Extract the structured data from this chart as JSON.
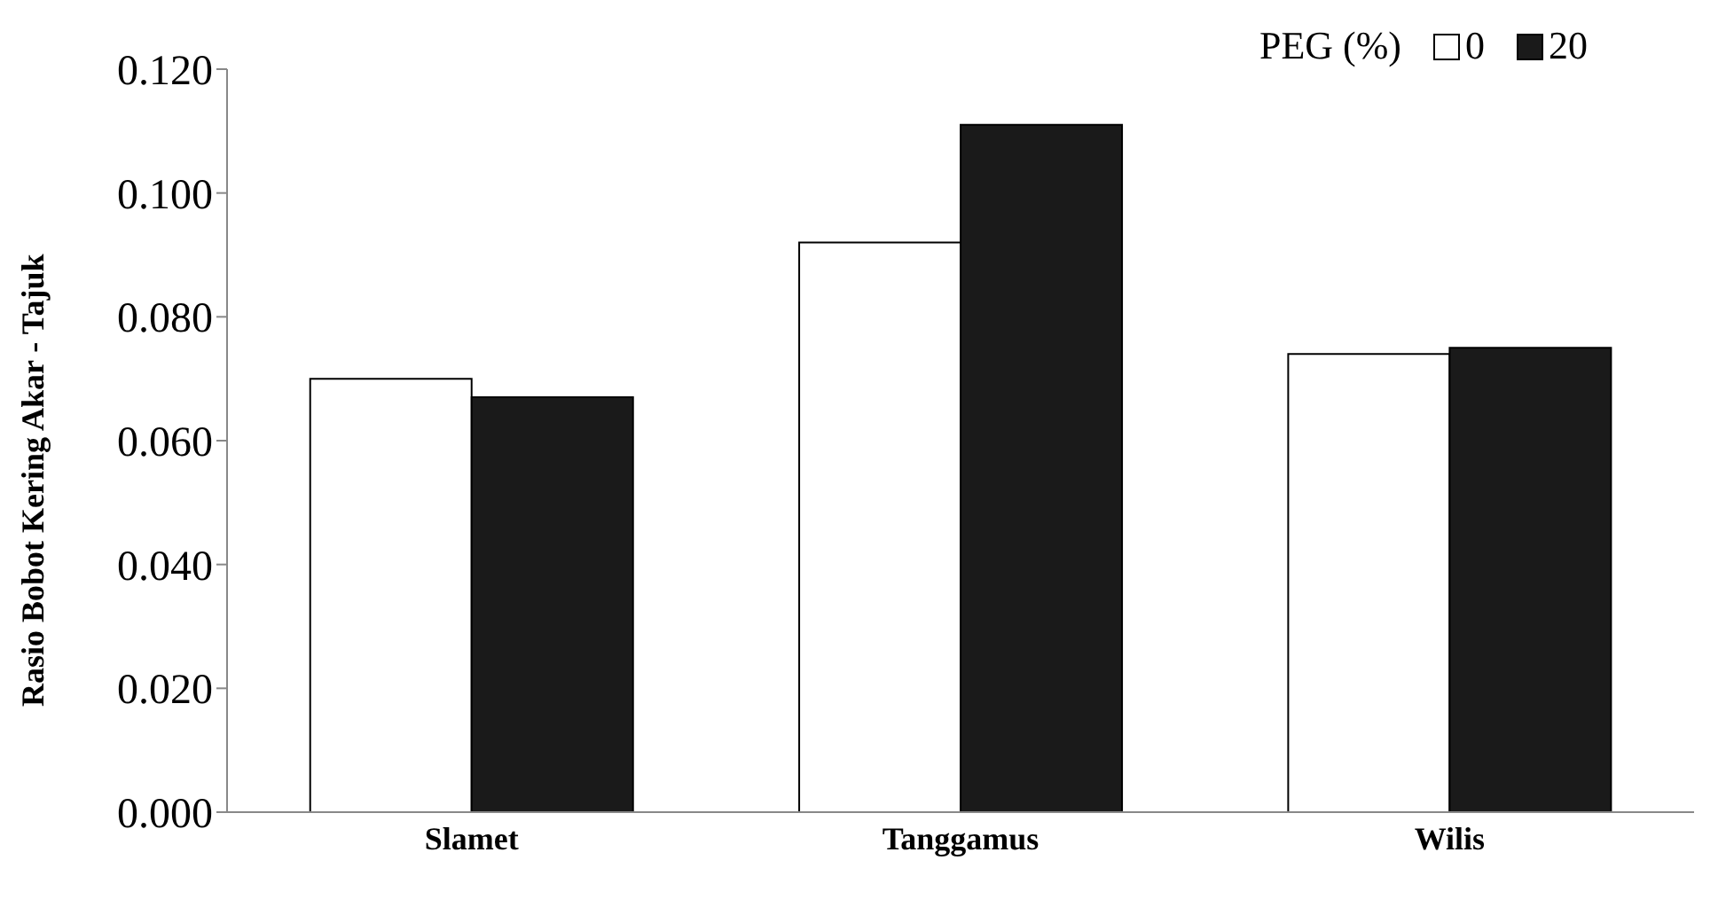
{
  "chart_data": {
    "type": "bar",
    "ylabel": "Rasio Bobot Kering Akar - Tajuk",
    "legend_title": "PEG (%)",
    "categories": [
      "Slamet",
      "Tanggamus",
      "Wilis"
    ],
    "series": [
      {
        "name": "0",
        "color": "#ffffff",
        "values": [
          0.07,
          0.092,
          0.074
        ]
      },
      {
        "name": "20",
        "color": "#1a1a1a",
        "values": [
          0.067,
          0.111,
          0.075
        ]
      }
    ],
    "ylim": [
      0,
      0.12
    ],
    "yticks": [
      {
        "value": 0,
        "label": "0.000"
      },
      {
        "value": 0.02,
        "label": "0.020"
      },
      {
        "value": 0.04,
        "label": "0.040"
      },
      {
        "value": 0.06,
        "label": "0.060"
      },
      {
        "value": 0.08,
        "label": "0.080"
      },
      {
        "value": 0.1,
        "label": "0.100"
      },
      {
        "value": 0.12,
        "label": "0.120"
      }
    ],
    "grid": false,
    "legend": "top right"
  }
}
